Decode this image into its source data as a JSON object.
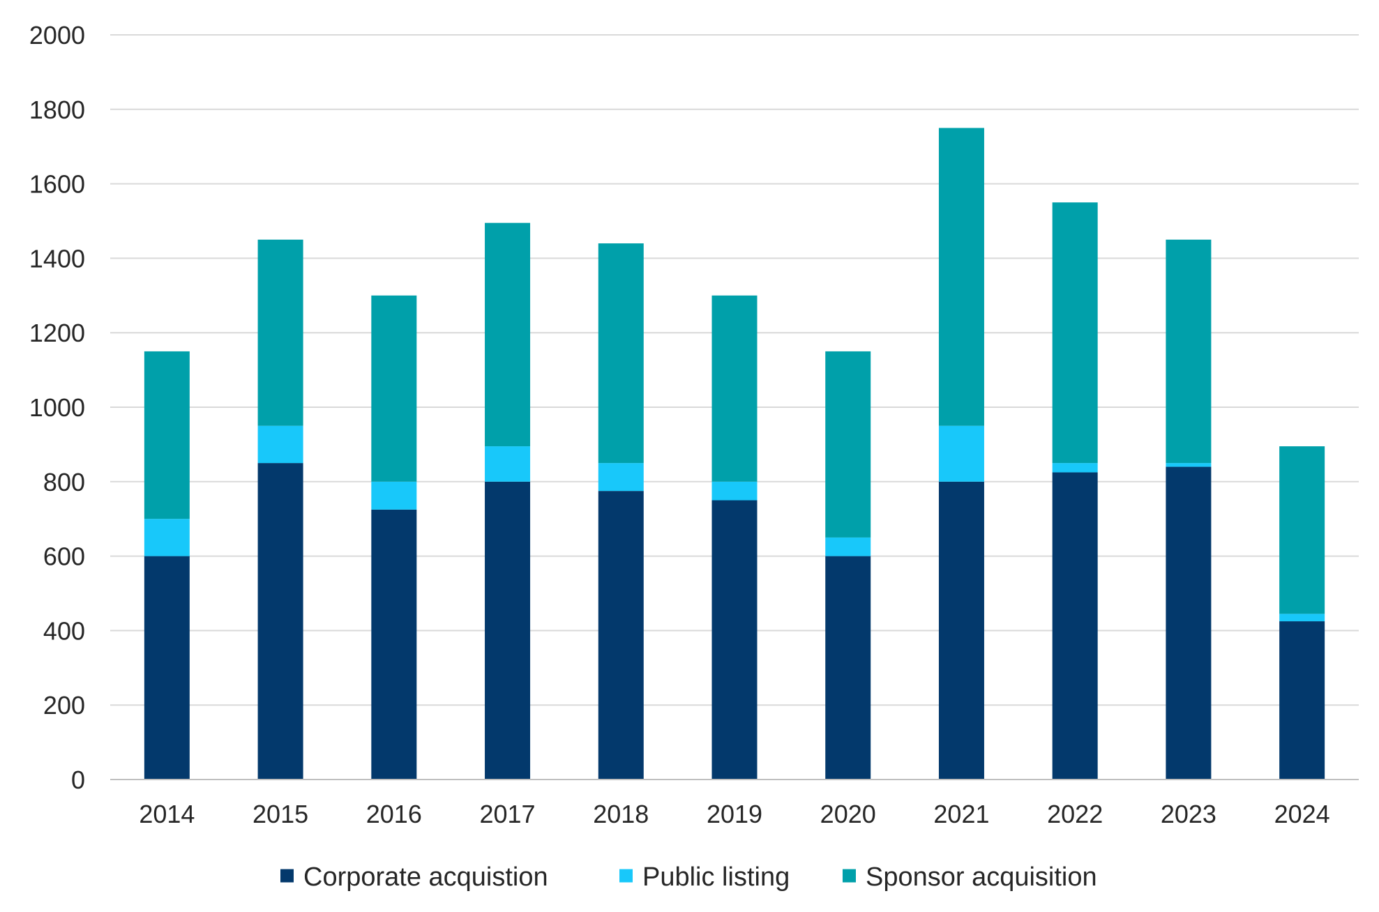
{
  "chart_data": {
    "type": "bar",
    "stacked": true,
    "categories": [
      "2014",
      "2015",
      "2016",
      "2017",
      "2018",
      "2019",
      "2020",
      "2021",
      "2022",
      "2023",
      "2024"
    ],
    "series": [
      {
        "name": "Corporate acquistion",
        "color": "#03396c",
        "values": [
          600,
          850,
          725,
          800,
          775,
          750,
          600,
          800,
          825,
          840,
          425
        ]
      },
      {
        "name": "Public listing",
        "color": "#18c8fa",
        "values": [
          100,
          100,
          75,
          95,
          75,
          50,
          50,
          150,
          25,
          10,
          20
        ]
      },
      {
        "name": "Sponsor acquisition",
        "color": "#00a0aa",
        "values": [
          450,
          500,
          500,
          600,
          590,
          500,
          500,
          800,
          700,
          600,
          450
        ]
      }
    ],
    "ylim": [
      0,
      2000
    ],
    "yticks": [
      0,
      200,
      400,
      600,
      800,
      1000,
      1200,
      1400,
      1600,
      1800,
      2000
    ],
    "grid": true,
    "legend_position": "bottom",
    "gridline_color": "#d9d9d9",
    "axis_color": "#bfbfbf"
  }
}
